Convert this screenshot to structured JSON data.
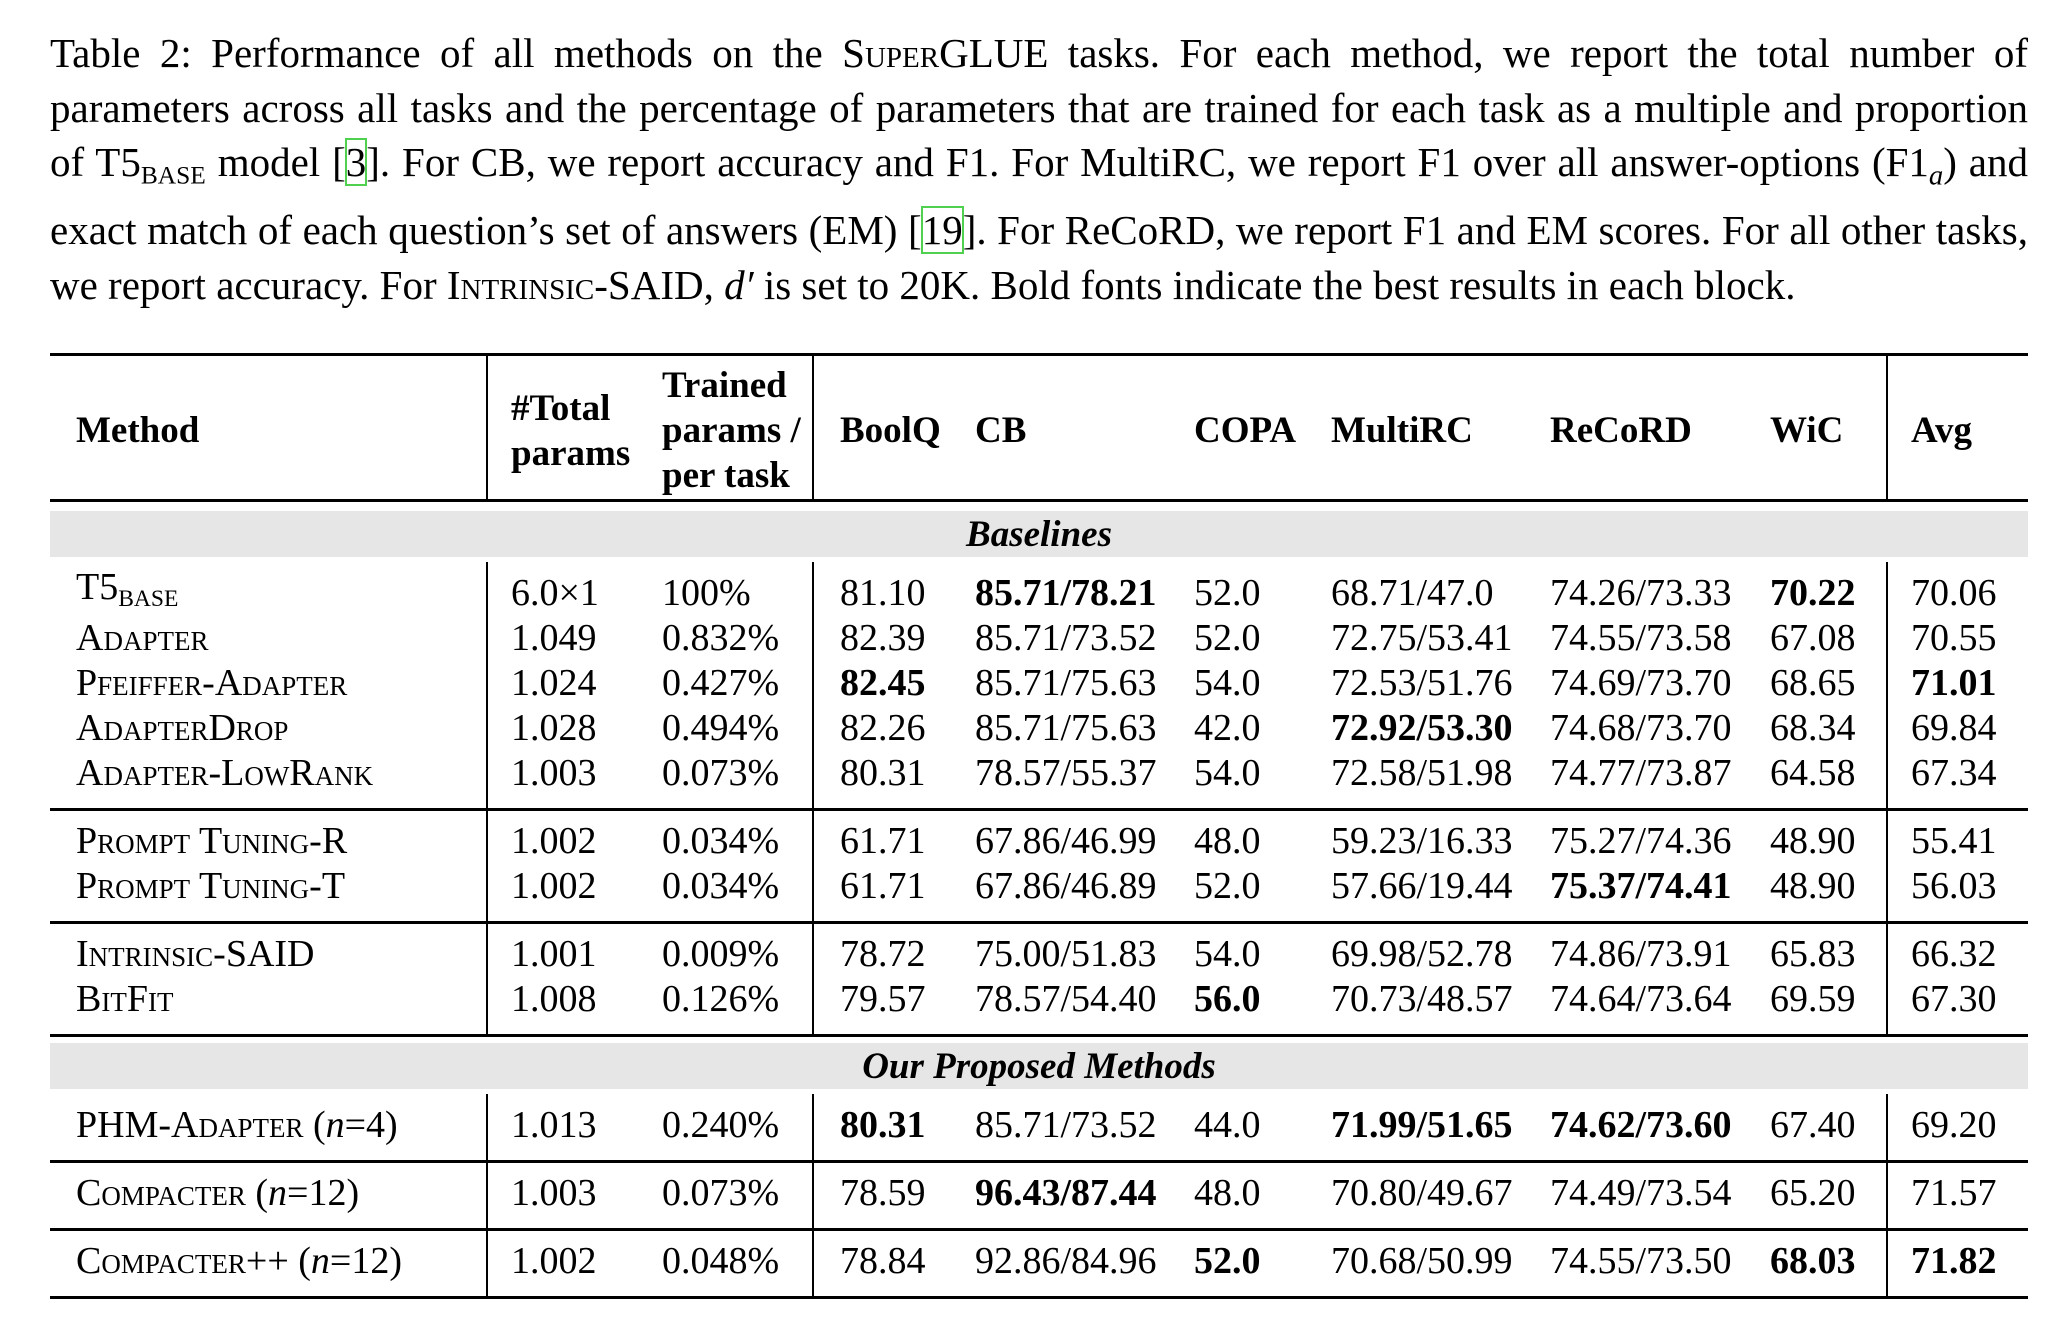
{
  "caption": [
    {
      "text": "Table 2: Performance of all methods on the "
    },
    {
      "text": "SuperGLUE",
      "style": "sc"
    },
    {
      "text": " tasks. For each method, we report the total number of parameters across all tasks and the percentage of parameters that are trained for each task as a multiple and proportion of T5"
    },
    {
      "text": "BASE",
      "style": "sub"
    },
    {
      "text": " model ["
    },
    {
      "text": "3",
      "style": "link"
    },
    {
      "text": "]. For CB, we report accuracy and F1. For MultiRC, we report F1 over all answer-options (F1"
    },
    {
      "text": "a",
      "style": "subi"
    },
    {
      "text": ") and exact match of each question’s set of answers (EM) ["
    },
    {
      "text": "19",
      "style": "link"
    },
    {
      "text": "]. For ReCoRD, we report F1 and EM scores. For all other tasks, we report accuracy. For "
    },
    {
      "text": "Intrinsic-SAID",
      "style": "sc"
    },
    {
      "text": ", "
    },
    {
      "text": "d′",
      "style": "i"
    },
    {
      "text": " is set to 20K. Bold fonts indicate the best results in each block."
    }
  ],
  "table": {
    "header": [
      [
        "Method"
      ],
      [
        "#Total",
        "params"
      ],
      [
        "Trained",
        "params /",
        "per task"
      ],
      [
        "BoolQ"
      ],
      [
        "CB"
      ],
      [
        "COPA"
      ],
      [
        "MultiRC"
      ],
      [
        "ReCoRD"
      ],
      [
        "WiC"
      ],
      [
        "Avg"
      ]
    ],
    "sections": [
      {
        "title": "Baselines",
        "blocks": [
          [
            {
              "method": [
                {
                  "text": "T5"
                },
                {
                  "text": "BASE",
                  "style": "sub"
                }
              ],
              "cells": [
                "6.0×1",
                "100%",
                "81.10",
                "85.71/78.21",
                "52.0",
                "68.71/47.0",
                "74.26/73.33",
                "70.22",
                "70.06"
              ],
              "bold": [
                3,
                7
              ]
            },
            {
              "method": [
                {
                  "text": "Adapter",
                  "style": "sc"
                }
              ],
              "cells": [
                "1.049",
                "0.832%",
                "82.39",
                "85.71/73.52",
                "52.0",
                "72.75/53.41",
                "74.55/73.58",
                "67.08",
                "70.55"
              ],
              "bold": []
            },
            {
              "method": [
                {
                  "text": "Pfeiffer-Adapter",
                  "style": "sc"
                }
              ],
              "cells": [
                "1.024",
                "0.427%",
                "82.45",
                "85.71/75.63",
                "54.0",
                "72.53/51.76",
                "74.69/73.70",
                "68.65",
                "71.01"
              ],
              "bold": [
                2,
                8
              ]
            },
            {
              "method": [
                {
                  "text": "AdapterDrop",
                  "style": "sc"
                }
              ],
              "cells": [
                "1.028",
                "0.494%",
                "82.26",
                "85.71/75.63",
                "42.0",
                "72.92/53.30",
                "74.68/73.70",
                "68.34",
                "69.84"
              ],
              "bold": [
                5
              ]
            },
            {
              "method": [
                {
                  "text": "Adapter-LowRank",
                  "style": "sc"
                }
              ],
              "cells": [
                "1.003",
                "0.073%",
                "80.31",
                "78.57/55.37",
                "54.0",
                "72.58/51.98",
                "74.77/73.87",
                "64.58",
                "67.34"
              ],
              "bold": []
            }
          ],
          [
            {
              "method": [
                {
                  "text": "Prompt Tuning-R",
                  "style": "sc"
                }
              ],
              "cells": [
                "1.002",
                "0.034%",
                "61.71",
                "67.86/46.99",
                "48.0",
                "59.23/16.33",
                "75.27/74.36",
                "48.90",
                "55.41"
              ],
              "bold": []
            },
            {
              "method": [
                {
                  "text": "Prompt Tuning-T",
                  "style": "sc"
                }
              ],
              "cells": [
                "1.002",
                "0.034%",
                "61.71",
                "67.86/46.89",
                "52.0",
                "57.66/19.44",
                "75.37/74.41",
                "48.90",
                "56.03"
              ],
              "bold": [
                6
              ]
            }
          ],
          [
            {
              "method": [
                {
                  "text": "Intrinsic-SAID",
                  "style": "sc"
                }
              ],
              "cells": [
                "1.001",
                "0.009%",
                "78.72",
                "75.00/51.83",
                "54.0",
                "69.98/52.78",
                "74.86/73.91",
                "65.83",
                "66.32"
              ],
              "bold": []
            },
            {
              "method": [
                {
                  "text": "BitFit",
                  "style": "sc"
                }
              ],
              "cells": [
                "1.008",
                "0.126%",
                "79.57",
                "78.57/54.40",
                "56.0",
                "70.73/48.57",
                "74.64/73.64",
                "69.59",
                "67.30"
              ],
              "bold": [
                4
              ]
            }
          ]
        ]
      },
      {
        "title": "Our Proposed Methods",
        "blocks": [
          [
            {
              "method": [
                {
                  "text": "PHM-Adapter",
                  "style": "sc"
                },
                {
                  "text": " ("
                },
                {
                  "text": "n",
                  "style": "i"
                },
                {
                  "text": "=4)"
                }
              ],
              "cells": [
                "1.013",
                "0.240%",
                "80.31",
                "85.71/73.52",
                "44.0",
                "71.99/51.65",
                "74.62/73.60",
                "67.40",
                "69.20"
              ],
              "bold": [
                2,
                5,
                6
              ]
            }
          ],
          [
            {
              "method": [
                {
                  "text": "Compacter",
                  "style": "sc"
                },
                {
                  "text": " ("
                },
                {
                  "text": "n",
                  "style": "i"
                },
                {
                  "text": "=12)"
                }
              ],
              "cells": [
                "1.003",
                "0.073%",
                "78.59",
                "96.43/87.44",
                "48.0",
                "70.80/49.67",
                "74.49/73.54",
                "65.20",
                "71.57"
              ],
              "bold": [
                3
              ]
            }
          ],
          [
            {
              "method": [
                {
                  "text": "Compacter++",
                  "style": "sc"
                },
                {
                  "text": " ("
                },
                {
                  "text": "n",
                  "style": "i"
                },
                {
                  "text": "=12)"
                }
              ],
              "cells": [
                "1.002",
                "0.048%",
                "78.84",
                "92.86/84.96",
                "52.0",
                "70.68/50.99",
                "74.55/73.50",
                "68.03",
                "71.82"
              ],
              "bold": [
                4,
                7,
                8
              ]
            }
          ]
        ]
      }
    ]
  }
}
